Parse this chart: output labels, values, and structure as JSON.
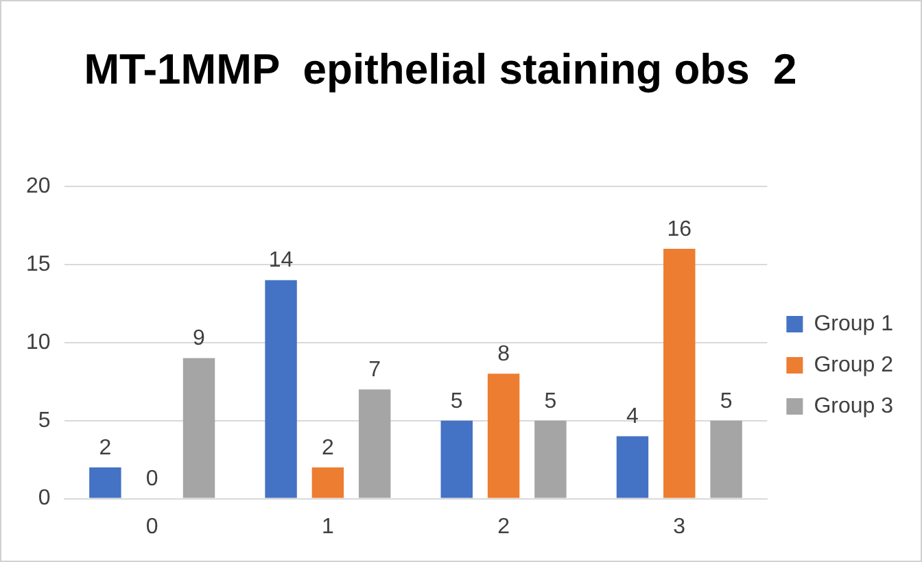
{
  "chart_data": {
    "type": "bar",
    "title": "MT-1MMP  epithelial staining obs  2",
    "categories": [
      "0",
      "1",
      "2",
      "3"
    ],
    "series": [
      {
        "name": "Group 1",
        "color": "#4472c4",
        "values": [
          2,
          14,
          5,
          4
        ]
      },
      {
        "name": "Group 2",
        "color": "#ed7d31",
        "values": [
          0,
          2,
          8,
          16
        ]
      },
      {
        "name": "Group 3",
        "color": "#a5a5a5",
        "values": [
          9,
          7,
          5,
          5
        ]
      }
    ],
    "ylim": [
      0,
      20
    ],
    "yticks": [
      0,
      5,
      10,
      15,
      20
    ],
    "grid": "y",
    "legend": "right",
    "data_labels": true
  }
}
